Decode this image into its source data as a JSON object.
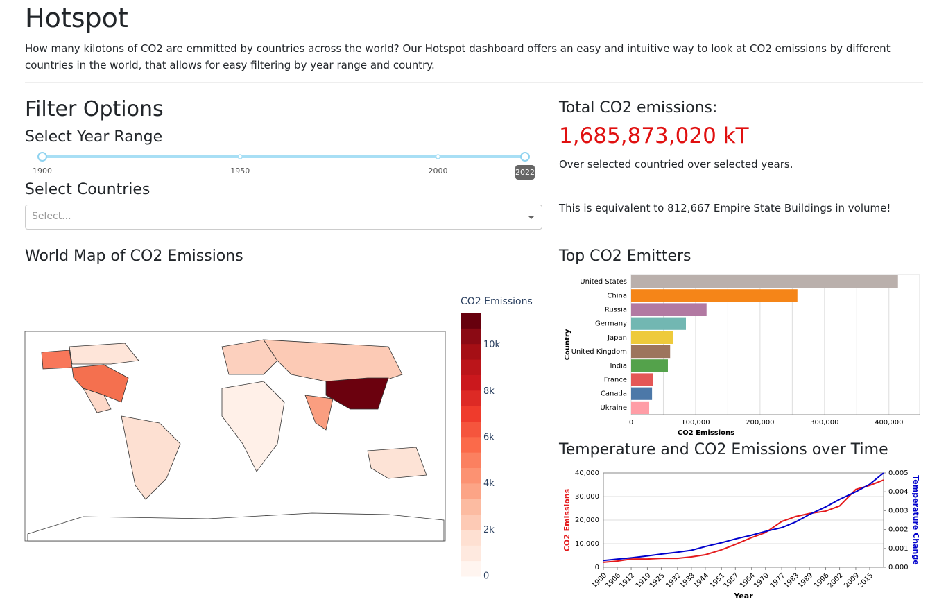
{
  "header": {
    "title": "Hotspot",
    "description": "How many kilotons of CO2 are emmitted by countries across the world? Our Hotspot dashboard offers an easy and intuitive way to look at CO2 emissions by different countries in the world, that allows for easy filtering by year range and country."
  },
  "filters": {
    "title": "Filter Options",
    "year_label": "Select Year Range",
    "slider": {
      "min": 1900,
      "max": 2022,
      "marks": [
        1900,
        1950,
        2000
      ],
      "value": [
        1900,
        2022
      ]
    },
    "countries_label": "Select Countries",
    "countries_placeholder": "Select..."
  },
  "summary": {
    "title": "Total CO2 emissions:",
    "total": "1,685,873,020 kT",
    "note": "Over selected countried over selected years.",
    "equivalence": "This is equivalent to 812,667 Empire State Buildings in volume!"
  },
  "map": {
    "title": "World Map of CO2 Emissions",
    "colorbar_title": "CO2 Emissions",
    "clim": [
      0,
      11400
    ],
    "colorscale": [
      "#fff5f0",
      "#fee9df",
      "#fee0d2",
      "#fdcab5",
      "#fcbba1",
      "#fca486",
      "#fc9272",
      "#fb8060",
      "#fb6a4a",
      "#f5553d",
      "#ef3b2c",
      "#dd2a25",
      "#cb181d",
      "#bb151a",
      "#a50f15",
      "#8b0a14",
      "#67000d"
    ],
    "ticks": [
      0,
      {
        "value": 2000,
        "label": "2k"
      },
      {
        "value": 4000,
        "label": "4k"
      },
      {
        "value": 6000,
        "label": "6k"
      },
      {
        "value": 8000,
        "label": "8k"
      },
      {
        "value": 10000,
        "label": "10k"
      }
    ]
  },
  "chart_data": [
    {
      "type": "hbar",
      "title": "Top CO2 Emitters",
      "xlabel": "CO2 Emissions",
      "ylabel": "Country",
      "categories": [
        "United States",
        "China",
        "Russia",
        "Germany",
        "Japan",
        "United Kingdom",
        "India",
        "France",
        "Canada",
        "Ukraine"
      ],
      "values": [
        414000,
        258000,
        117000,
        85000,
        65000,
        60500,
        57000,
        33500,
        32400,
        28000
      ],
      "colors": [
        "#bab0ac",
        "#f58518",
        "#b279a2",
        "#72b7b2",
        "#eeca3b",
        "#9d755d",
        "#54a24b",
        "#e45756",
        "#4c78a8",
        "#ff9da6"
      ],
      "xlim": [
        0,
        447600
      ],
      "xticks": [
        0,
        {
          "value": 100000,
          "label": "100,000"
        },
        {
          "value": 200000,
          "label": "200,000"
        },
        {
          "value": 300000,
          "label": "300,000"
        },
        {
          "value": 400000,
          "label": "400,000"
        }
      ],
      "x_minor_ticks": [
        50000,
        150000,
        250000,
        350000
      ],
      "grid": true
    },
    {
      "type": "line",
      "title": "Temperature and CO2 Emissions over Time",
      "xlabel": "Year",
      "ylabel": "CO2 Emissions",
      "y2label": "Temperature Change",
      "x": [
        1900,
        1906,
        1912,
        1919,
        1925,
        1932,
        1938,
        1944,
        1951,
        1957,
        1964,
        1970,
        1977,
        1983,
        1989,
        1996,
        2002,
        2009,
        2015,
        2021
      ],
      "xlim": [
        1900,
        2021
      ],
      "xticks": [
        1900,
        1906,
        1912,
        1919,
        1925,
        1932,
        1938,
        1944,
        1951,
        1957,
        1964,
        1970,
        1977,
        1983,
        1989,
        1996,
        2002,
        2009,
        2015
      ],
      "ylim": [
        0,
        40000
      ],
      "yticks": [
        0,
        {
          "value": 10000,
          "label": "10,000"
        },
        {
          "value": 20000,
          "label": "20,000"
        },
        {
          "value": 30000,
          "label": "30,000"
        },
        {
          "value": 40000,
          "label": "40,000"
        }
      ],
      "y2lim": [
        0,
        0.005
      ],
      "y2ticks": [
        {
          "value": 0,
          "label": "0.000"
        },
        {
          "value": 0.001,
          "label": "0.001"
        },
        {
          "value": 0.002,
          "label": "0.002"
        },
        {
          "value": 0.003,
          "label": "0.003"
        },
        {
          "value": 0.004,
          "label": "0.004"
        },
        {
          "value": 0.005,
          "label": "0.005"
        }
      ],
      "grid": true,
      "series": [
        {
          "color": "#e41a1c",
          "values": [
            2100,
            2600,
            3500,
            3500,
            3800,
            3800,
            4400,
            5300,
            7400,
            9700,
            12600,
            14700,
            19400,
            21500,
            22800,
            23800,
            26000,
            33000,
            34700,
            37000
          ]
        },
        {
          "color": "#0000cc",
          "axis": "y2",
          "values": [
            0.00036,
            0.00043,
            0.0005,
            0.0006,
            0.0007,
            0.0008,
            0.0009,
            0.0011,
            0.0013,
            0.0015,
            0.0017,
            0.0019,
            0.0021,
            0.0024,
            0.0028,
            0.0032,
            0.0036,
            0.004,
            0.0044,
            0.005
          ]
        }
      ]
    }
  ]
}
